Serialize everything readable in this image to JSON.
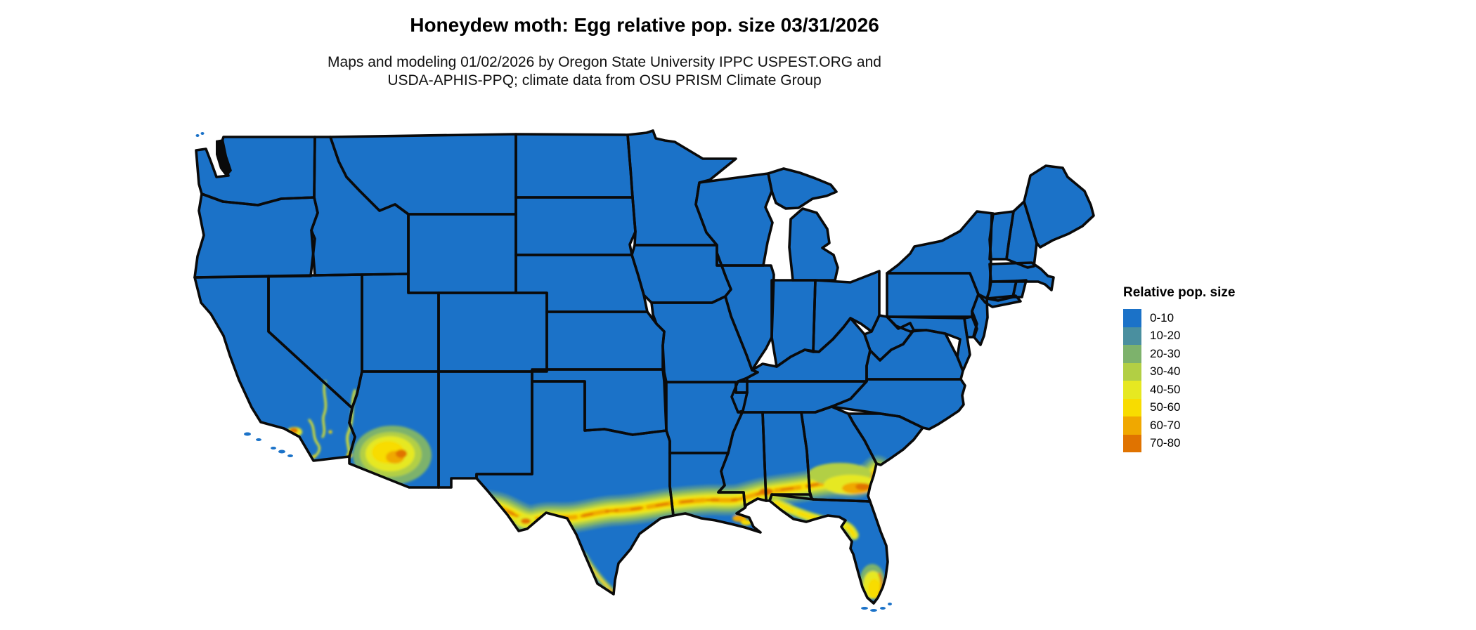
{
  "header": {
    "title": "Honeydew moth: Egg relative pop. size 03/31/2026",
    "subtitle_line1": "Maps and modeling 01/02/2026 by Oregon State University IPPC USPEST.ORG and",
    "subtitle_line2": "USDA-APHIS-PPQ; climate data from OSU PRISM Climate Group"
  },
  "legend": {
    "title": "Relative pop. size",
    "items": [
      {
        "label": "0-10",
        "color": "#1B72C8"
      },
      {
        "label": "10-20",
        "color": "#4A8F9F"
      },
      {
        "label": "20-30",
        "color": "#7DB26C"
      },
      {
        "label": "30-40",
        "color": "#B2CF44"
      },
      {
        "label": "40-50",
        "color": "#E6E821"
      },
      {
        "label": "50-60",
        "color": "#F8DC00"
      },
      {
        "label": "60-70",
        "color": "#F0A800"
      },
      {
        "label": "70-80",
        "color": "#E07300"
      }
    ]
  },
  "map": {
    "base_color": "#1B72C8",
    "border_color": "#0a0a0a",
    "water_color": "#ffffff"
  }
}
